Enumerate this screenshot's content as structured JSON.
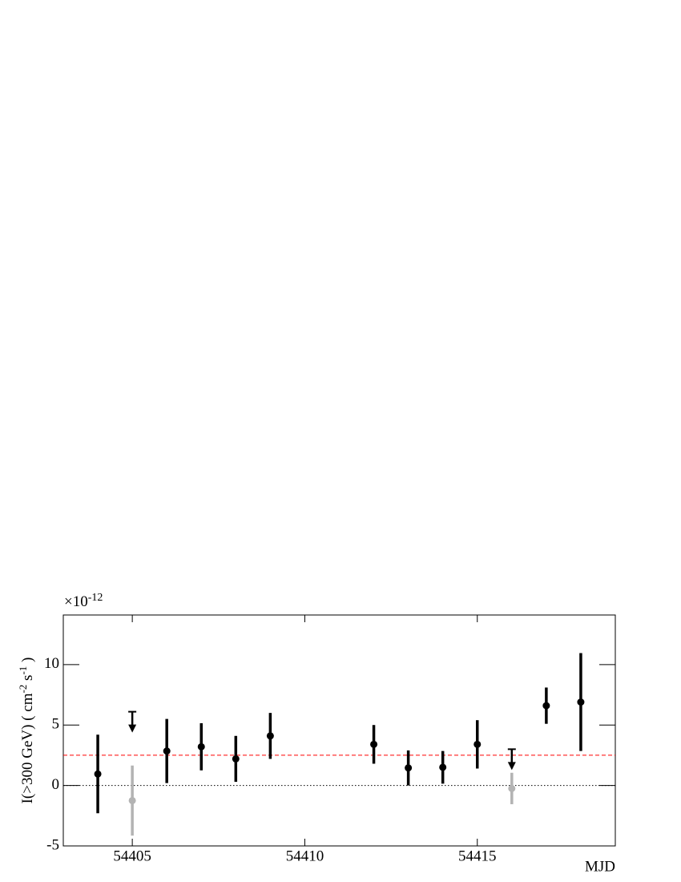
{
  "chart_data": {
    "type": "errorbar",
    "y_label_parts": [
      "I(>300 GeV) ( cm",
      "-2",
      " s",
      "-1",
      " )"
    ],
    "y_multiplier": [
      "×10",
      "-12"
    ],
    "x_label": "MJD",
    "xlim": [
      54403,
      54419
    ],
    "ylim": [
      -5,
      14.1
    ],
    "xticks": [
      54405,
      54410,
      54415
    ],
    "yticks": [
      -5,
      0,
      5,
      10
    ],
    "points": {
      "color": "#000000",
      "x": [
        54404,
        54406,
        54407,
        54408,
        54409,
        54412,
        54413,
        54414,
        54415,
        54417,
        54418
      ],
      "values": [
        0.95,
        2.85,
        3.2,
        2.2,
        4.1,
        3.4,
        1.45,
        1.5,
        3.4,
        6.6,
        6.9
      ],
      "errors": [
        3.25,
        2.65,
        1.95,
        1.9,
        1.9,
        1.6,
        1.45,
        1.35,
        2.0,
        1.5,
        4.05
      ]
    },
    "excluded_points": {
      "color": "#b3b3b3",
      "x": [
        54405,
        54416
      ],
      "values": [
        -1.25,
        -0.25
      ],
      "errors": [
        2.9,
        1.3
      ]
    },
    "upper_limits": {
      "color": "#000000",
      "x": [
        54405,
        54416
      ],
      "values": [
        6.1,
        3.0
      ]
    },
    "mean_line": {
      "value": 2.5,
      "color": "#ff0000"
    },
    "zero_line": {
      "value": 0,
      "color": "#000000"
    }
  }
}
